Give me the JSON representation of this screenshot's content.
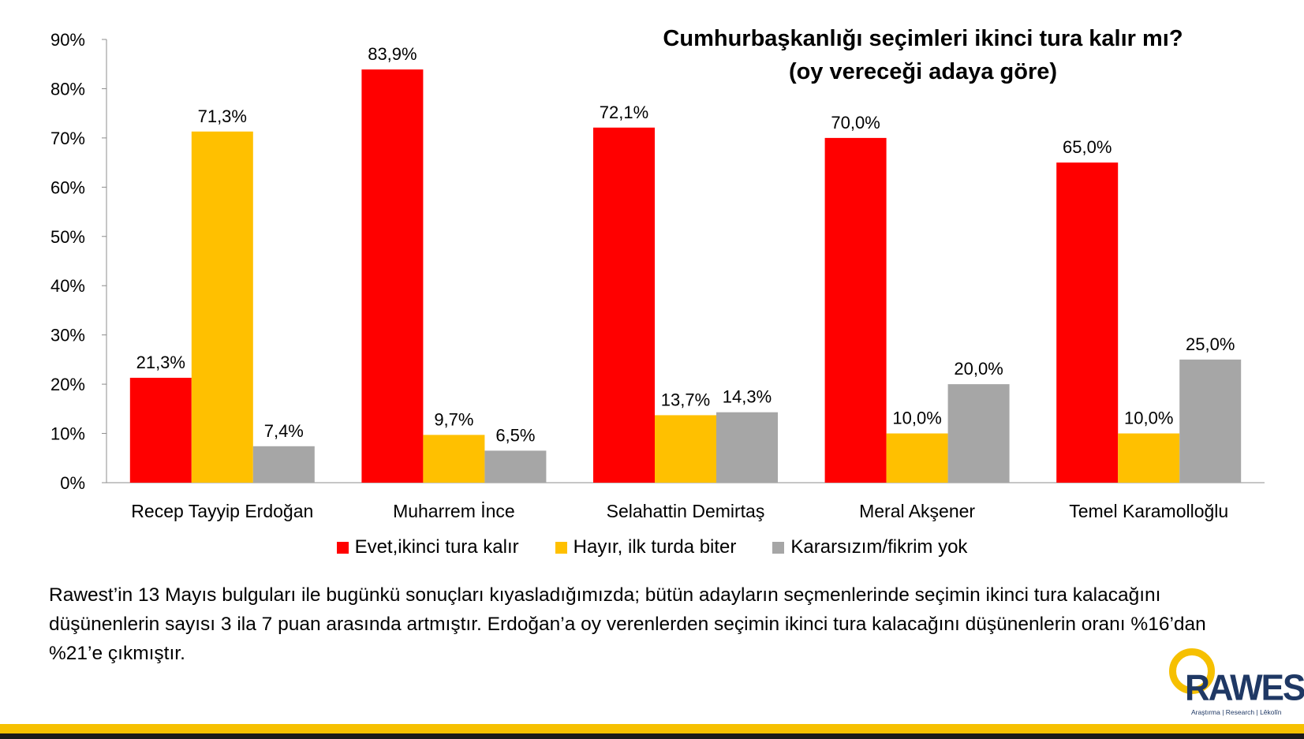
{
  "chart_data": {
    "type": "bar",
    "title_line1": "Cumhurbaşkanlığı seçimleri ikinci tura kalır mı?",
    "title_line2": "(oy vereceği adaya göre)",
    "categories": [
      "Recep Tayyip Erdoğan",
      "Muharrem İnce",
      "Selahattin Demirtaş",
      "Meral Akşener",
      "Temel Karamolloğlu"
    ],
    "series": [
      {
        "name": "Evet,ikinci tura kalır",
        "color": "#ff0000",
        "values": [
          21.3,
          83.9,
          72.1,
          70.0,
          65.0
        ],
        "labels": [
          "21,3%",
          "83,9%",
          "72,1%",
          "70,0%",
          "65,0%"
        ]
      },
      {
        "name": "Hayır, ilk turda biter",
        "color": "#ffc000",
        "values": [
          71.3,
          9.7,
          13.7,
          10.0,
          10.0
        ],
        "labels": [
          "71,3%",
          "9,7%",
          "13,7%",
          "10,0%",
          "10,0%"
        ]
      },
      {
        "name": "Kararsızım/fikrim yok",
        "color": "#a6a6a6",
        "values": [
          7.4,
          6.5,
          14.3,
          20.0,
          25.0
        ],
        "labels": [
          "7,4%",
          "6,5%",
          "14,3%",
          "20,0%",
          "25,0%"
        ]
      }
    ],
    "ylim": [
      0,
      90
    ],
    "yticks": [
      0,
      10,
      20,
      30,
      40,
      50,
      60,
      70,
      80,
      90
    ],
    "ytick_labels": [
      "0%",
      "10%",
      "20%",
      "30%",
      "40%",
      "50%",
      "60%",
      "70%",
      "80%",
      "90%"
    ],
    "grid": false,
    "legend_position": "bottom"
  },
  "note": "Rawest’in 13 Mayıs bulguları ile bugünkü sonuçları kıyasladığımızda; bütün adayların seçmenlerinde seçimin ikinci tura kalacağını düşünenlerin sayısı 3 ila 7 puan arasında artmıştır. Erdoğan’a oy verenlerden seçimin ikinci tura kalacağını düşünenlerin oranı %16’dan %21’e çıkmıştır.",
  "logo": {
    "wordmark": "RAWEST",
    "tagline": "Araştırma | Research | Lêkolîn"
  },
  "colors": {
    "accent_yellow": "#f6c000",
    "logo_navy": "#1f3864"
  }
}
